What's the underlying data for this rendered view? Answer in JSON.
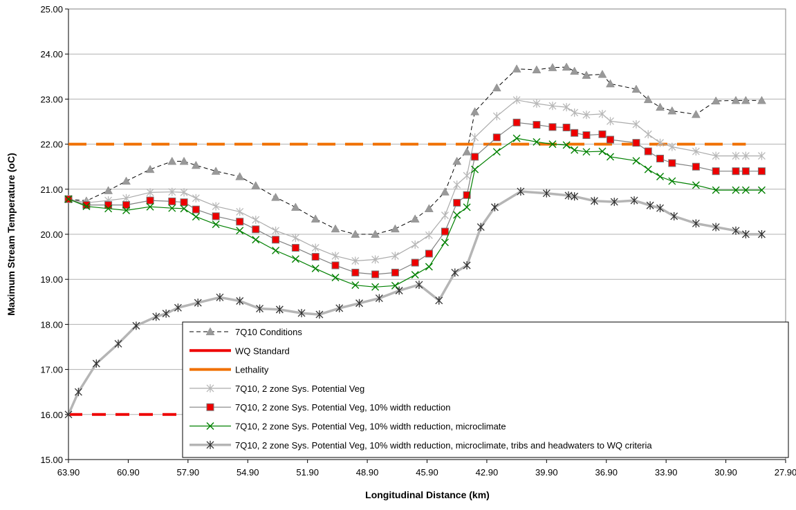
{
  "chart_data": {
    "type": "line",
    "xlabel": "Longitudinal Distance (km)",
    "ylabel": "Maximum Stream Temperature (oC)",
    "xlim": [
      63.9,
      27.9
    ],
    "x_reversed": true,
    "ylim": [
      15,
      25
    ],
    "x_ticks": [
      "63.90",
      "60.90",
      "57.90",
      "54.90",
      "51.90",
      "48.90",
      "45.90",
      "42.90",
      "39.90",
      "36.90",
      "33.90",
      "30.90",
      "27.90"
    ],
    "y_ticks": [
      "15.00",
      "16.00",
      "17.00",
      "18.00",
      "19.00",
      "20.00",
      "21.00",
      "22.00",
      "23.00",
      "24.00",
      "25.00"
    ],
    "grid": "horizontal",
    "legend_position": "bottom-right",
    "series": [
      {
        "name": "7Q10 Conditions",
        "color": "#000000",
        "marker_color": "#999999",
        "line_style": "dashed",
        "marker": "triangle",
        "x": [
          63.9,
          63.0,
          61.9,
          61.0,
          59.8,
          58.7,
          58.1,
          57.5,
          56.5,
          55.3,
          54.5,
          53.5,
          52.5,
          51.5,
          50.5,
          49.5,
          48.5,
          47.5,
          46.5,
          45.8,
          45.0,
          44.4,
          43.9,
          43.5,
          42.4,
          41.4,
          40.4,
          39.6,
          38.9,
          38.5,
          37.9,
          37.1,
          36.7,
          35.4,
          34.8,
          34.2,
          33.6,
          32.4,
          31.4,
          30.4,
          29.9,
          29.1
        ],
        "y": [
          20.78,
          20.74,
          20.97,
          21.18,
          21.44,
          21.62,
          21.62,
          21.53,
          21.4,
          21.28,
          21.08,
          20.82,
          20.6,
          20.34,
          20.12,
          20.0,
          20.0,
          20.12,
          20.34,
          20.57,
          20.94,
          21.62,
          21.83,
          22.72,
          23.25,
          23.67,
          23.65,
          23.7,
          23.71,
          23.62,
          23.53,
          23.55,
          23.34,
          23.22,
          22.99,
          22.82,
          22.74,
          22.66,
          22.96,
          22.97,
          22.97,
          22.97
        ]
      },
      {
        "name": "WQ Standard",
        "color": "#ee0000",
        "line_style": "dashed",
        "marker": "none",
        "x": [
          63.9,
          57.4
        ],
        "y": [
          16.0,
          16.0
        ]
      },
      {
        "name": "Lethality",
        "color": "#f07000",
        "line_style": "dashed",
        "marker": "none",
        "x": [
          63.9,
          29.9
        ],
        "y": [
          22.0,
          22.0
        ]
      },
      {
        "name": "7Q10, 2 zone Sys. Potential Veg",
        "color": "#aaaaaa",
        "marker_color": "#b8b8b8",
        "line_style": "solid",
        "marker": "star",
        "x": [
          63.9,
          63.0,
          61.9,
          61.0,
          59.8,
          58.7,
          58.1,
          57.5,
          56.5,
          55.3,
          54.5,
          53.5,
          52.5,
          51.5,
          50.5,
          49.5,
          48.5,
          47.5,
          46.5,
          45.8,
          45.0,
          44.4,
          43.9,
          43.5,
          42.4,
          41.4,
          40.4,
          39.6,
          38.9,
          38.5,
          37.9,
          37.1,
          36.7,
          35.4,
          34.8,
          34.2,
          33.6,
          32.4,
          31.4,
          30.4,
          29.9,
          29.1
        ],
        "y": [
          20.78,
          20.7,
          20.75,
          20.8,
          20.93,
          20.94,
          20.93,
          20.8,
          20.62,
          20.5,
          20.32,
          20.08,
          19.92,
          19.7,
          19.52,
          19.41,
          19.44,
          19.52,
          19.77,
          19.98,
          20.42,
          21.1,
          21.3,
          22.15,
          22.62,
          22.98,
          22.9,
          22.85,
          22.82,
          22.7,
          22.65,
          22.67,
          22.51,
          22.44,
          22.22,
          22.03,
          21.94,
          21.84,
          21.74,
          21.74,
          21.74,
          21.74
        ]
      },
      {
        "name": "7Q10, 2 zone Sys. Potential Veg, 10% width reduction",
        "color": "#808080",
        "marker_color": "#ee0000",
        "line_style": "solid",
        "marker": "square",
        "x": [
          63.9,
          63.0,
          61.9,
          61.0,
          59.8,
          58.7,
          58.1,
          57.5,
          56.5,
          55.3,
          54.5,
          53.5,
          52.5,
          51.5,
          50.5,
          49.5,
          48.5,
          47.5,
          46.5,
          45.8,
          45.0,
          44.4,
          43.9,
          43.5,
          42.4,
          41.4,
          40.4,
          39.6,
          38.9,
          38.5,
          37.9,
          37.1,
          36.7,
          35.4,
          34.8,
          34.2,
          33.6,
          32.4,
          31.4,
          30.4,
          29.9,
          29.1
        ],
        "y": [
          20.78,
          20.65,
          20.65,
          20.65,
          20.75,
          20.73,
          20.71,
          20.55,
          20.4,
          20.28,
          20.11,
          19.88,
          19.7,
          19.5,
          19.31,
          19.15,
          19.11,
          19.15,
          19.37,
          19.57,
          20.06,
          20.7,
          20.87,
          21.72,
          22.15,
          22.48,
          22.43,
          22.38,
          22.37,
          22.25,
          22.2,
          22.22,
          22.1,
          22.03,
          21.84,
          21.68,
          21.58,
          21.5,
          21.4,
          21.4,
          21.4,
          21.4
        ]
      },
      {
        "name": "7Q10, 2 zone Sys. Potential Veg, 10% width reduction, microclimate",
        "color": "#008000",
        "marker_color": "#008000",
        "line_style": "solid",
        "marker": "x",
        "x": [
          63.9,
          63.0,
          61.9,
          61.0,
          59.8,
          58.7,
          58.1,
          57.5,
          56.5,
          55.3,
          54.5,
          53.5,
          52.5,
          51.5,
          50.5,
          49.5,
          48.5,
          47.5,
          46.5,
          45.8,
          45.0,
          44.4,
          43.9,
          43.5,
          42.4,
          41.4,
          40.4,
          39.6,
          38.9,
          38.5,
          37.9,
          37.1,
          36.7,
          35.4,
          34.8,
          34.2,
          33.6,
          32.4,
          31.4,
          30.4,
          29.9,
          29.1
        ],
        "y": [
          20.78,
          20.62,
          20.57,
          20.53,
          20.61,
          20.58,
          20.57,
          20.39,
          20.22,
          20.08,
          19.88,
          19.64,
          19.45,
          19.24,
          19.04,
          18.87,
          18.83,
          18.86,
          19.1,
          19.28,
          19.82,
          20.43,
          20.6,
          21.44,
          21.83,
          22.13,
          22.05,
          22.0,
          21.98,
          21.87,
          21.83,
          21.84,
          21.72,
          21.63,
          21.44,
          21.28,
          21.18,
          21.09,
          20.98,
          20.98,
          20.98,
          20.98
        ]
      },
      {
        "name": "7Q10, 2 zone Sys. Potential Veg, 10% width reduction, microclimate, tribs and headwaters to WQ criteria",
        "color": "#b5b5b5",
        "marker_color": "#333333",
        "line_style": "solid",
        "marker": "asterisk",
        "x": [
          63.9,
          63.4,
          62.5,
          61.4,
          60.5,
          59.5,
          59.0,
          58.4,
          57.4,
          56.3,
          55.3,
          54.3,
          53.3,
          52.2,
          51.3,
          50.3,
          49.3,
          48.3,
          47.3,
          46.3,
          45.3,
          44.5,
          43.9,
          43.2,
          42.5,
          41.2,
          39.9,
          38.8,
          38.5,
          37.5,
          36.5,
          35.5,
          34.7,
          34.2,
          33.5,
          32.4,
          31.4,
          30.4,
          29.9,
          29.1
        ],
        "y": [
          16.0,
          16.5,
          17.13,
          17.57,
          17.97,
          18.17,
          18.24,
          18.37,
          18.48,
          18.6,
          18.52,
          18.35,
          18.33,
          18.25,
          18.22,
          18.36,
          18.47,
          18.58,
          18.75,
          18.88,
          18.53,
          19.15,
          19.31,
          20.16,
          20.6,
          20.95,
          20.91,
          20.86,
          20.84,
          20.74,
          20.72,
          20.75,
          20.64,
          20.58,
          20.4,
          20.24,
          20.16,
          20.08,
          20.0,
          20.0
        ]
      }
    ]
  }
}
